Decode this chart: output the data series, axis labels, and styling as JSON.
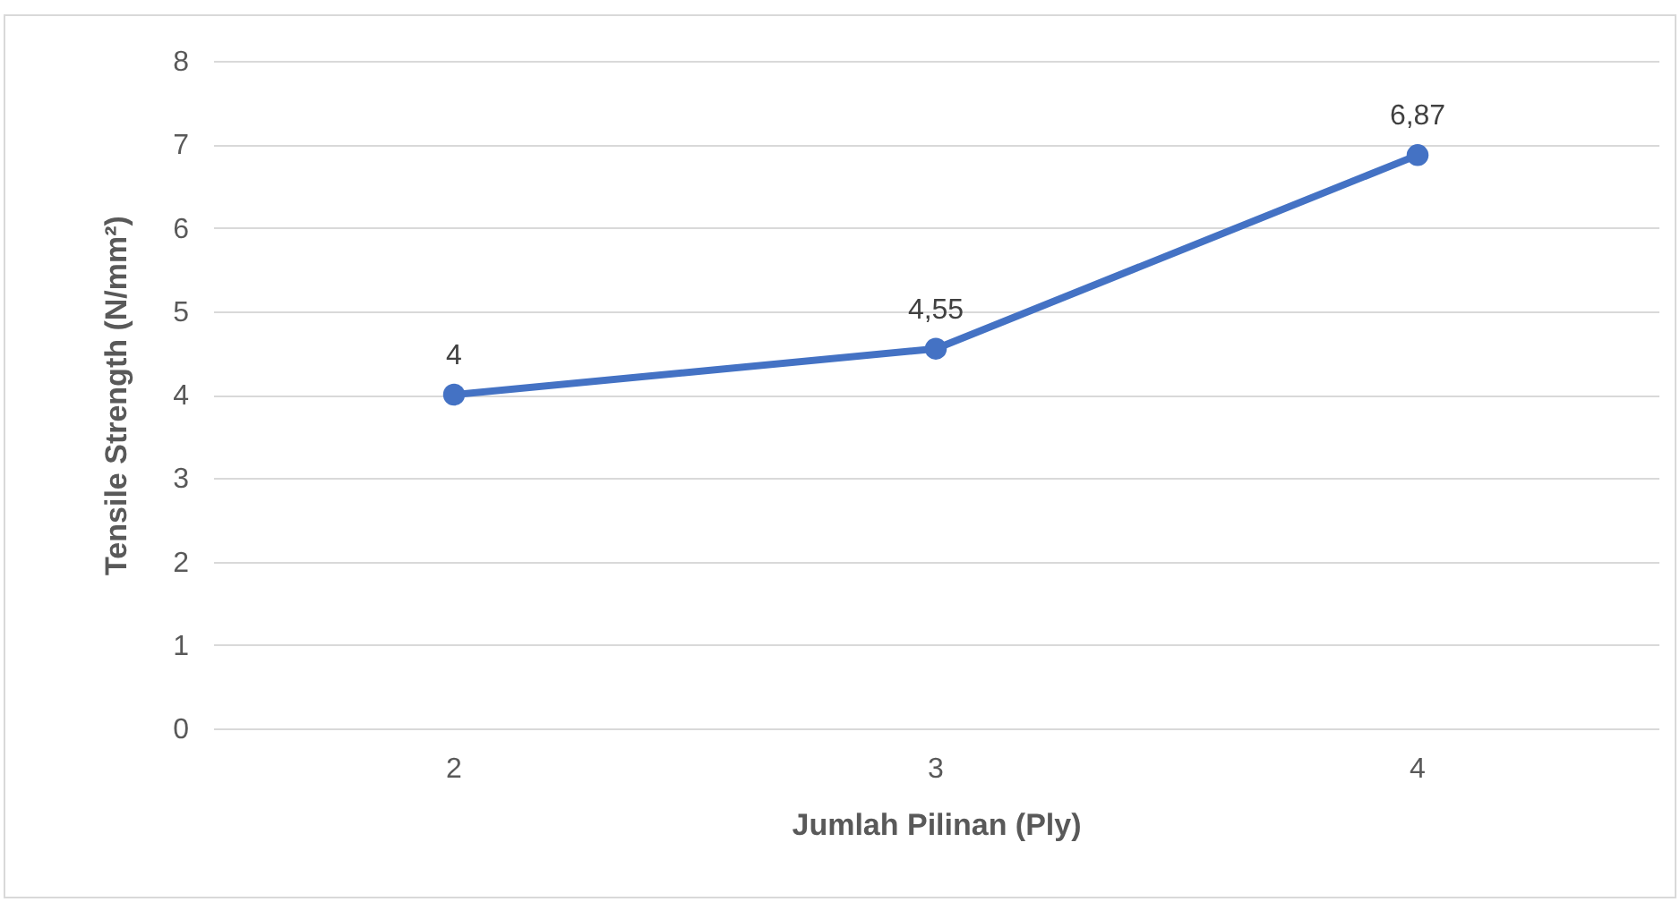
{
  "chart_data": {
    "type": "line",
    "xlabel": "Jumlah Pilinan (Ply)",
    "ylabel": "Tensile Strength (N/mm²)",
    "categories": [
      "2",
      "3",
      "4"
    ],
    "series": [
      {
        "color": "#4472c4",
        "values": [
          4,
          4.55,
          6.87
        ],
        "value_labels": [
          "4",
          "4,55",
          "6,87"
        ]
      }
    ],
    "ylim": [
      0,
      8
    ],
    "yticks": [
      0,
      1,
      2,
      3,
      4,
      5,
      6,
      7,
      8
    ],
    "grid": "y",
    "marker": "circle",
    "line_style": "solid"
  }
}
